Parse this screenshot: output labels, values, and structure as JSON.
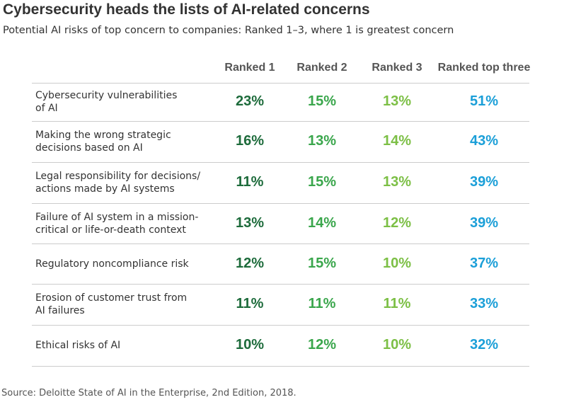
{
  "header": {
    "title": "Cybersecurity heads the lists of AI-related concerns",
    "subtitle": "Potential AI risks of top concern to companies: Ranked 1–3, where 1 is greatest concern"
  },
  "table": {
    "columns": [
      "Ranked 1",
      "Ranked 2",
      "Ranked 3",
      "Ranked top three"
    ],
    "column_colors": [
      "#1d6b3b",
      "#3aa64c",
      "#7cbf45",
      "#1b9fd8"
    ],
    "rows": [
      [
        "Cybersecurity vulnerabilities\n of AI",
        "23%",
        "15%",
        "13%",
        "51%"
      ],
      [
        "Making the wrong strategic\ndecisions based on AI",
        "16%",
        "13%",
        "14%",
        "43%"
      ],
      [
        "Legal responsibility for decisions/\nactions made by AI systems",
        "11%",
        "15%",
        "13%",
        "39%"
      ],
      [
        "Failure of AI system in a mission-\ncritical or life-or-death context",
        "13%",
        "14%",
        "12%",
        "39%"
      ],
      [
        "Regulatory noncompliance risk",
        "12%",
        "15%",
        "10%",
        "37%"
      ],
      [
        "Erosion of customer trust from\nAI failures",
        "11%",
        "11%",
        "11%",
        "33%"
      ],
      [
        "Ethical risks of AI",
        "10%",
        "12%",
        "10%",
        "32%"
      ]
    ]
  },
  "footer": {
    "source": "Source: Deloitte State of AI in the Enterprise, 2nd Edition, 2018."
  }
}
